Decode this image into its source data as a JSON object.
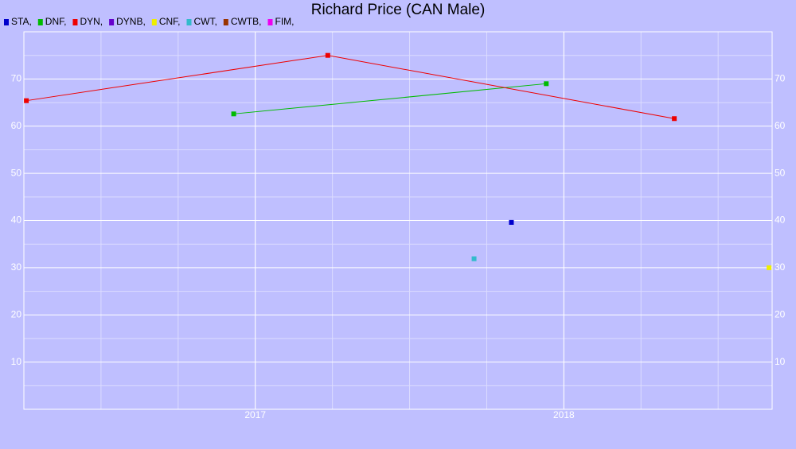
{
  "chart_data": {
    "type": "line",
    "title": "Richard Price (CAN Male)",
    "xlim": [
      2016.25,
      2018.675
    ],
    "xticks": [
      2017,
      2018
    ],
    "ylim": [
      0,
      80
    ],
    "yticks": [
      10,
      20,
      30,
      40,
      50,
      60,
      70
    ],
    "grid": true,
    "series": [
      {
        "name": "STA,",
        "color": "#0000cc",
        "x": [
          2017.83
        ],
        "values": [
          39.6
        ]
      },
      {
        "name": "DNF,",
        "color": "#00bb00",
        "x": [
          2016.93,
          2017.943
        ],
        "values": [
          62.6,
          69.0
        ]
      },
      {
        "name": "DYN,",
        "color": "#ee0000",
        "x": [
          2016.258,
          2017.235,
          2018.358
        ],
        "values": [
          65.4,
          75.0,
          61.6
        ]
      },
      {
        "name": "DYNB,",
        "color": "#6600cc",
        "x": [],
        "values": []
      },
      {
        "name": "CNF,",
        "color": "#eeee00",
        "x": [
          2018.665
        ],
        "values": [
          30.0
        ]
      },
      {
        "name": "CWT,",
        "color": "#33bbcc",
        "x": [
          2017.709
        ],
        "values": [
          31.9
        ]
      },
      {
        "name": "CWTB,",
        "color": "#993300",
        "x": [],
        "values": []
      },
      {
        "name": "FIM,",
        "color": "#ee00ee",
        "x": [],
        "values": []
      }
    ]
  }
}
